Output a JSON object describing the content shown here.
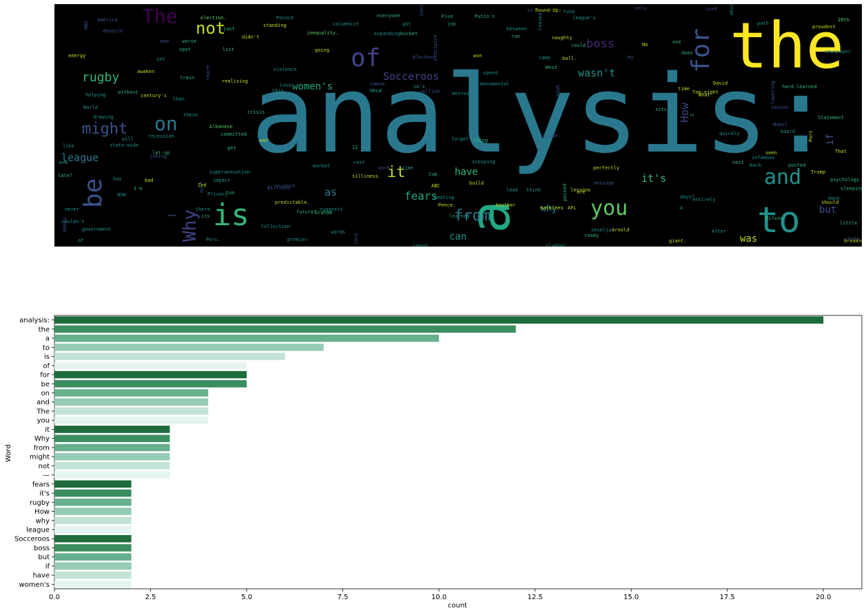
{
  "wordcloud": {
    "words": [
      {
        "text": "analysis:",
        "color": "#2a788e"
      },
      {
        "text": "the",
        "color": "#fde725"
      },
      {
        "text": "to",
        "color": "#21918c"
      },
      {
        "text": "a",
        "color": "#22a884"
      },
      {
        "text": "is",
        "color": "#35b779"
      },
      {
        "text": "of",
        "color": "#414487"
      },
      {
        "text": "for",
        "color": "#3b528b"
      },
      {
        "text": "be",
        "color": "#3b528b"
      },
      {
        "text": "The",
        "color": "#440154"
      },
      {
        "text": "you",
        "color": "#5ec962"
      },
      {
        "text": "and",
        "color": "#21918c"
      },
      {
        "text": "on",
        "color": "#2a788e"
      },
      {
        "text": "not",
        "color": "#c2df23"
      },
      {
        "text": "it",
        "color": "#c2df23"
      },
      {
        "text": "might",
        "color": "#3b528b"
      },
      {
        "text": "from",
        "color": "#2a788e"
      },
      {
        "text": "Why",
        "color": "#414487"
      },
      {
        "text": "—",
        "color": "#3b528b"
      },
      {
        "text": "rugby",
        "color": "#35b779"
      },
      {
        "text": "fears",
        "color": "#22a884"
      },
      {
        "text": "boss",
        "color": "#482878"
      },
      {
        "text": "it's",
        "color": "#35b779"
      },
      {
        "text": "women's",
        "color": "#22a884"
      },
      {
        "text": "league",
        "color": "#2a788e"
      },
      {
        "text": "Socceroos",
        "color": "#414487"
      },
      {
        "text": "wasn't",
        "color": "#21918c"
      },
      {
        "text": "have",
        "color": "#35b779"
      },
      {
        "text": "can",
        "color": "#21918c"
      },
      {
        "text": "was",
        "color": "#c2df23"
      },
      {
        "text": "but",
        "color": "#3b528b"
      },
      {
        "text": "why",
        "color": "#2a788e"
      },
      {
        "text": "as",
        "color": "#2a788e"
      },
      {
        "text": "How",
        "color": "#414487"
      },
      {
        "text": "if",
        "color": "#3b528b"
      },
      {
        "text": "Round-Up:",
        "color": "#c2df23"
      },
      {
        "text": "Putin's",
        "color": "#35b779"
      },
      {
        "text": "election.",
        "color": "#5ec962"
      },
      {
        "text": "Pocock",
        "color": "#21918c"
      },
      {
        "text": "columnist",
        "color": "#21918c"
      },
      {
        "text": "everyone",
        "color": "#35b779"
      },
      {
        "text": "got",
        "color": "#21918c"
      },
      {
        "text": "job",
        "color": "#22a884"
      },
      {
        "text": "America",
        "color": "#3b528b"
      },
      {
        "text": "standing",
        "color": "#c2df23"
      },
      {
        "text": "inequality.",
        "color": "#5ec962"
      },
      {
        "text": "expanding",
        "color": "#21918c"
      },
      {
        "text": "bucket",
        "color": "#35b779"
      },
      {
        "text": "naughty",
        "color": "#b5de2b"
      },
      {
        "text": "proudest",
        "color": "#c2df23"
      },
      {
        "text": "20th",
        "color": "#5ec962"
      },
      {
        "text": "worse",
        "color": "#35b779"
      },
      {
        "text": "energy",
        "color": "#c2df23"
      },
      {
        "text": "awaken",
        "color": "#c2df23"
      },
      {
        "text": "train",
        "color": "#35b779"
      },
      {
        "text": "violence",
        "color": "#21918c"
      },
      {
        "text": "realising",
        "color": "#c2df23"
      },
      {
        "text": "century's",
        "color": "#c2df23"
      },
      {
        "text": "helping",
        "color": "#21918c"
      },
      {
        "text": "drawing",
        "color": "#21918c"
      },
      {
        "text": "crisis",
        "color": "#35b779"
      },
      {
        "text": "Albanese",
        "color": "#5ec962"
      },
      {
        "text": "committed",
        "color": "#35b779"
      },
      {
        "text": "recession",
        "color": "#21918c"
      },
      {
        "text": "state-wide",
        "color": "#21918c"
      },
      {
        "text": "let-up",
        "color": "#35b779"
      },
      {
        "text": "superannuation",
        "color": "#21918c"
      },
      {
        "text": "Privacy",
        "color": "#21918c"
      },
      {
        "text": "government",
        "color": "#21918c"
      },
      {
        "text": "Collection",
        "color": "#21918c"
      },
      {
        "text": "premier",
        "color": "#21918c"
      },
      {
        "text": "predictable.",
        "color": "#c2df23"
      },
      {
        "text": "suggests",
        "color": "#21918c"
      },
      {
        "text": "silliness.",
        "color": "#c2df23"
      },
      {
        "text": "scooping",
        "color": "#21918c"
      },
      {
        "text": "perfectly",
        "color": "#c2df23"
      },
      {
        "text": "infamous",
        "color": "#21918c"
      },
      {
        "text": "psychology",
        "color": "#35b779"
      },
      {
        "text": "breakneck",
        "color": "#c2df23"
      },
      {
        "text": "slumber",
        "color": "#21918c"
      },
      {
        "text": "monumental",
        "color": "#21918c"
      },
      {
        "text": "hard-learned",
        "color": "#35b779"
      },
      {
        "text": "Top-eight",
        "color": "#c2df23"
      },
      {
        "text": "Statement",
        "color": "#35b779"
      },
      {
        "text": "newspaper",
        "color": "#21918c"
      },
      {
        "text": "Seselja",
        "color": "#21918c"
      },
      {
        "text": "Arnold",
        "color": "#c2df23"
      },
      {
        "text": "Wilson",
        "color": "#35b779"
      },
      {
        "text": "Trump",
        "color": "#c2df23"
      },
      {
        "text": "sleeping",
        "color": "#35b779"
      },
      {
        "text": "quickly",
        "color": "#21918c"
      },
      {
        "text": "lessons",
        "color": "#c2df23"
      },
      {
        "text": "Graham",
        "color": "#35b779"
      },
      {
        "text": "Another",
        "color": "#c2df23"
      },
      {
        "text": "Pence.",
        "color": "#c2df23"
      },
      {
        "text": "learned",
        "color": "#21918c"
      },
      {
        "text": "speed.",
        "color": "#21918c"
      },
      {
        "text": "words",
        "color": "#21918c"
      },
      {
        "text": "future?",
        "color": "#35b779"
      },
      {
        "text": "ready",
        "color": "#35b779"
      },
      {
        "text": "giant.",
        "color": "#c2df23"
      },
      {
        "text": "After",
        "color": "#21918c"
      },
      {
        "text": "little",
        "color": "#35b779"
      },
      {
        "text": "should",
        "color": "#c2df23"
      },
      {
        "text": "move",
        "color": "#21918c"
      },
      {
        "text": "entirely",
        "color": "#21918c"
      },
      {
        "text": "days?",
        "color": "#21918c"
      },
      {
        "text": "next",
        "color": "#35b779"
      },
      {
        "text": "posted",
        "color": "#35b779"
      },
      {
        "text": "back",
        "color": "#21918c"
      },
      {
        "text": "seen",
        "color": "#c2df23"
      },
      {
        "text": "That",
        "color": "#c2df23"
      },
      {
        "text": "board",
        "color": "#21918c"
      },
      {
        "text": "sits",
        "color": "#35b779"
      },
      {
        "text": "What",
        "color": "#c2df23"
      },
      {
        "text": "David",
        "color": "#c2df23"
      },
      {
        "text": "time",
        "color": "#c2df23"
      },
      {
        "text": "metres",
        "color": "#21918c"
      },
      {
        "text": "SA's",
        "color": "#21918c"
      },
      {
        "text": "spend",
        "color": "#21918c"
      },
      {
        "text": "won",
        "color": "#c2df23"
      },
      {
        "text": "going",
        "color": "#c2df23"
      },
      {
        "text": "lose",
        "color": "#21918c"
      },
      {
        "text": "list",
        "color": "#35b779"
      },
      {
        "text": "didn't",
        "color": "#c2df23"
      },
      {
        "text": "just",
        "color": "#35b779"
      },
      {
        "text": "spot",
        "color": "#35b779"
      },
      {
        "text": "set",
        "color": "#21918c"
      },
      {
        "text": "run",
        "color": "#35b779"
      },
      {
        "text": "between",
        "color": "#21918c"
      },
      {
        "text": "league's",
        "color": "#21918c"
      },
      {
        "text": "came",
        "color": "#21918c"
      },
      {
        "text": "ball.",
        "color": "#c2df23"
      },
      {
        "text": "No",
        "color": "#c2df23"
      },
      {
        "text": "one",
        "color": "#35b779"
      },
      {
        "text": "does",
        "color": "#35b779"
      },
      {
        "text": "West",
        "color": "#35b779"
      },
      {
        "text": "could",
        "color": "#35b779"
      },
      {
        "text": "NRLW",
        "color": "#21918c"
      },
      {
        "text": "this",
        "color": "#21918c"
      },
      {
        "text": "than",
        "color": "#21918c"
      },
      {
        "text": "without",
        "color": "#35b779"
      },
      {
        "text": "World",
        "color": "#21918c"
      },
      {
        "text": "these",
        "color": "#21918c"
      },
      {
        "text": "get",
        "color": "#35b779"
      },
      {
        "text": "war",
        "color": "#c2df23"
      },
      {
        "text": "12",
        "color": "#35b779"
      },
      {
        "text": "forget",
        "color": "#21918c"
      },
      {
        "text": "thing",
        "color": "#35b779"
      },
      {
        "text": "rest",
        "color": "#21918c"
      },
      {
        "text": "market",
        "color": "#21918c"
      },
      {
        "text": "impact",
        "color": "#21918c"
      },
      {
        "text": "too",
        "color": "#35b779"
      },
      {
        "text": "bad",
        "color": "#c2df23"
      },
      {
        "text": "I'm",
        "color": "#35b779"
      },
      {
        "text": "there",
        "color": "#21918c"
      },
      {
        "text": "its",
        "color": "#35b779"
      },
      {
        "text": "has",
        "color": "#21918c"
      },
      {
        "text": "NSW",
        "color": "#21918c"
      },
      {
        "text": "late?",
        "color": "#35b779"
      },
      {
        "text": "mob",
        "color": "#21918c"
      },
      {
        "text": "never",
        "color": "#21918c"
      },
      {
        "text": "couldn't",
        "color": "#21918c"
      },
      {
        "text": "at",
        "color": "#21918c"
      },
      {
        "text": "like",
        "color": "#21918c"
      },
      {
        "text": "will",
        "color": "#21918c"
      },
      {
        "text": "crime",
        "color": "#21918c"
      },
      {
        "text": "Cup",
        "color": "#35b779"
      },
      {
        "text": "ABC",
        "color": "#c2df23"
      },
      {
        "text": "Keating",
        "color": "#21918c"
      },
      {
        "text": "build",
        "color": "#c2df23"
      },
      {
        "text": "lead",
        "color": "#21918c"
      },
      {
        "text": "think",
        "color": "#21918c"
      },
      {
        "text": "machines",
        "color": "#c2df23"
      },
      {
        "text": "AFL",
        "color": "#c2df23"
      },
      {
        "text": "Zed",
        "color": "#c2df23"
      },
      {
        "text": "Peru.",
        "color": "#21918c"
      },
      {
        "text": "A",
        "color": "#21918c"
      },
      {
        "text": "I",
        "color": "#35b779"
      },
      {
        "text": "Port",
        "color": "#c2df23"
      },
      {
        "text": "Five",
        "color": "#35b779"
      },
      {
        "text": "only",
        "color": "#3b528b"
      },
      {
        "text": "used",
        "color": "#414487"
      },
      {
        "text": "my",
        "color": "#3b528b"
      },
      {
        "text": "blackout",
        "color": "#3b528b"
      },
      {
        "text": "Nobel",
        "color": "#3b528b"
      },
      {
        "text": "season",
        "color": "#3b528b"
      },
      {
        "text": "chalk",
        "color": "#3b528b"
      },
      {
        "text": "Billions",
        "color": "#3b528b"
      },
      {
        "text": "science",
        "color": "#3b528b"
      },
      {
        "text": "message",
        "color": "#3b528b"
      },
      {
        "text": "change.",
        "color": "#3b528b"
      },
      {
        "text": "work",
        "color": "#3b528b"
      },
      {
        "text": "must",
        "color": "#3b528b"
      },
      {
        "text": "joking",
        "color": "#3b528b"
      },
      {
        "text": "share",
        "color": "#3b528b"
      },
      {
        "text": "precipice",
        "color": "#3b528b"
      },
      {
        "text": "inevitable",
        "color": "#3b528b"
      },
      {
        "text": "selfish",
        "color": "#3b528b"
      },
      {
        "text": "talk",
        "color": "#3b528b"
      },
      {
        "text": "money",
        "color": "#3b528b"
      },
      {
        "text": "Samoa.",
        "color": "#3b528b"
      },
      {
        "text": "NBA",
        "color": "#3b528b"
      },
      {
        "text": "despite",
        "color": "#3b528b"
      },
      {
        "text": "book",
        "color": "#3b528b"
      },
      {
        "text": "poised",
        "color": "#35b779"
      },
      {
        "text": "losses",
        "color": "#21918c"
      },
      {
        "text": "lowering",
        "color": "#3b528b"
      },
      {
        "text": "which",
        "color": "#21918c"
      },
      {
        "text": "path",
        "color": "#21918c"
      },
      {
        "text": "are",
        "color": "#c2df23"
      },
      {
        "text": "fund",
        "color": "#21918c"
      },
      {
        "text": "so",
        "color": "#3b528b"
      },
      {
        "text": "man",
        "color": "#3b528b"
      }
    ]
  },
  "chart_data": {
    "type": "bar",
    "orientation": "horizontal",
    "categories": [
      "analysis:",
      "the",
      "a",
      "to",
      "is",
      "of",
      "for",
      "be",
      "on",
      "and",
      "The",
      "you",
      "it",
      "Why",
      "from",
      "might",
      "not",
      "—",
      "fears",
      "it's",
      "rugby",
      "How",
      "why",
      "league",
      "Socceroos",
      "boss",
      "but",
      "if",
      "have",
      "women's"
    ],
    "values": [
      20,
      12,
      10,
      7,
      6,
      5,
      5,
      5,
      4,
      4,
      4,
      4,
      3,
      3,
      3,
      3,
      3,
      3,
      2,
      2,
      2,
      2,
      2,
      2,
      2,
      2,
      2,
      2,
      2,
      2
    ],
    "palette": [
      "#1e6c3c",
      "#3a8d5f",
      "#66b08d",
      "#95cbb4",
      "#c3e3d7",
      "#e5f4f0"
    ],
    "xlabel": "count",
    "ylabel": "Word",
    "xlim": [
      0,
      21
    ],
    "xticks": [
      "0.0",
      "2.5",
      "5.0",
      "7.5",
      "10.0",
      "12.5",
      "15.0",
      "17.5",
      "20.0"
    ],
    "grid": false
  }
}
